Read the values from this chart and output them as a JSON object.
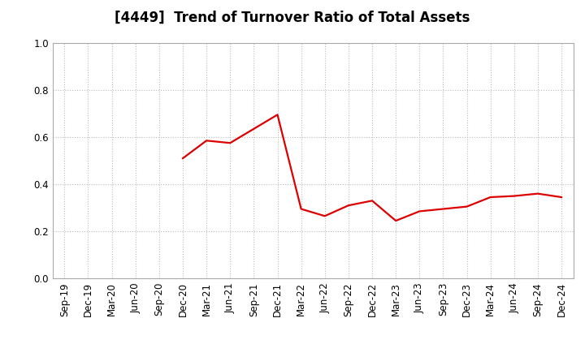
{
  "title": "[4449]  Trend of Turnover Ratio of Total Assets",
  "x_labels": [
    "Sep-19",
    "Dec-19",
    "Mar-20",
    "Jun-20",
    "Sep-20",
    "Dec-20",
    "Mar-21",
    "Jun-21",
    "Sep-21",
    "Dec-21",
    "Mar-22",
    "Jun-22",
    "Sep-22",
    "Dec-22",
    "Mar-23",
    "Jun-23",
    "Sep-23",
    "Dec-23",
    "Mar-24",
    "Jun-24",
    "Sep-24",
    "Dec-24"
  ],
  "y_values": [
    null,
    null,
    null,
    null,
    null,
    0.51,
    0.585,
    0.575,
    0.635,
    0.695,
    0.295,
    0.265,
    0.31,
    0.33,
    0.245,
    0.285,
    0.295,
    0.305,
    0.345,
    0.35,
    0.36,
    0.345
  ],
  "line_color": "#dd0000",
  "line_width": 1.6,
  "ylim": [
    0.0,
    1.0
  ],
  "yticks": [
    0.0,
    0.2,
    0.4,
    0.6,
    0.8,
    1.0
  ],
  "background_color": "#ffffff",
  "grid_color": "#bbbbbb",
  "title_fontsize": 12,
  "tick_fontsize": 8.5
}
